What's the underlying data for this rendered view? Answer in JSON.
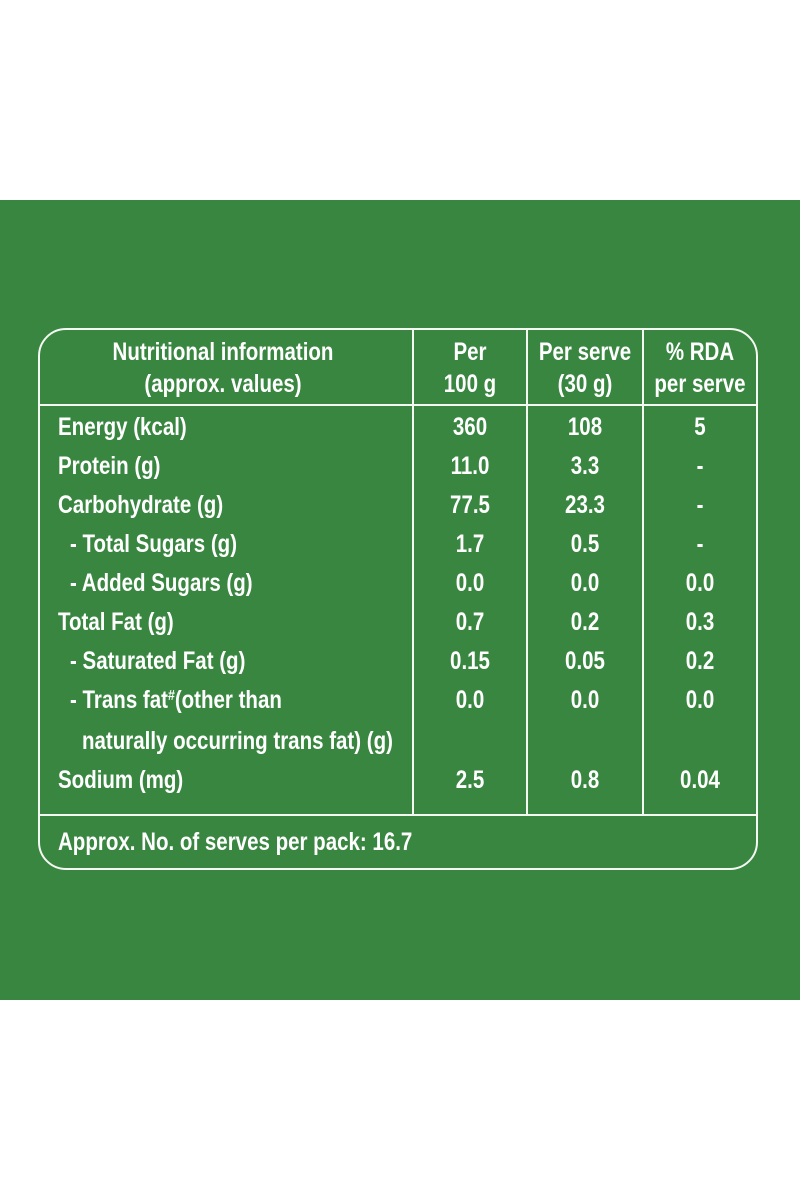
{
  "table": {
    "header": {
      "col1_line1": "Nutritional information",
      "col1_line2": "(approx. values)",
      "col2_line1": "Per",
      "col2_line2": "100 g",
      "col3_line1": "Per serve",
      "col3_line2": "(30 g)",
      "col4_line1": "% RDA",
      "col4_line2": "per serve"
    },
    "rows": [
      {
        "label": "Energy (kcal)",
        "per100": "360",
        "perServe": "108",
        "rda": "5"
      },
      {
        "label": "Protein (g)",
        "per100": "11.0",
        "perServe": "3.3",
        "rda": "-"
      },
      {
        "label": "Carbohydrate (g)",
        "per100": "77.5",
        "perServe": "23.3",
        "rda": "-"
      },
      {
        "label": "- Total Sugars (g)",
        "per100": "1.7",
        "perServe": "0.5",
        "rda": "-"
      },
      {
        "label": "- Added Sugars (g)",
        "per100": "0.0",
        "perServe": "0.0",
        "rda": "0.0"
      },
      {
        "label": "Total Fat (g)",
        "per100": "0.7",
        "perServe": "0.2",
        "rda": "0.3"
      },
      {
        "label": "- Saturated Fat (g)",
        "per100": "0.15",
        "perServe": "0.05",
        "rda": "0.2"
      },
      {
        "label_part1": "- Trans fat",
        "label_sup": "#",
        "label_part2": "(other than",
        "label_cont": "naturally occurring trans fat) (g)",
        "per100": "0.0",
        "perServe": "0.0",
        "rda": "0.0"
      },
      {
        "label": "Sodium (mg)",
        "per100": "2.5",
        "perServe": "0.8",
        "rda": "0.04"
      }
    ],
    "footer": "Approx. No. of serves per pack: 16.7"
  },
  "colors": {
    "background": "#388640",
    "lines": "#f4f7f2",
    "text": "#ffffff"
  }
}
